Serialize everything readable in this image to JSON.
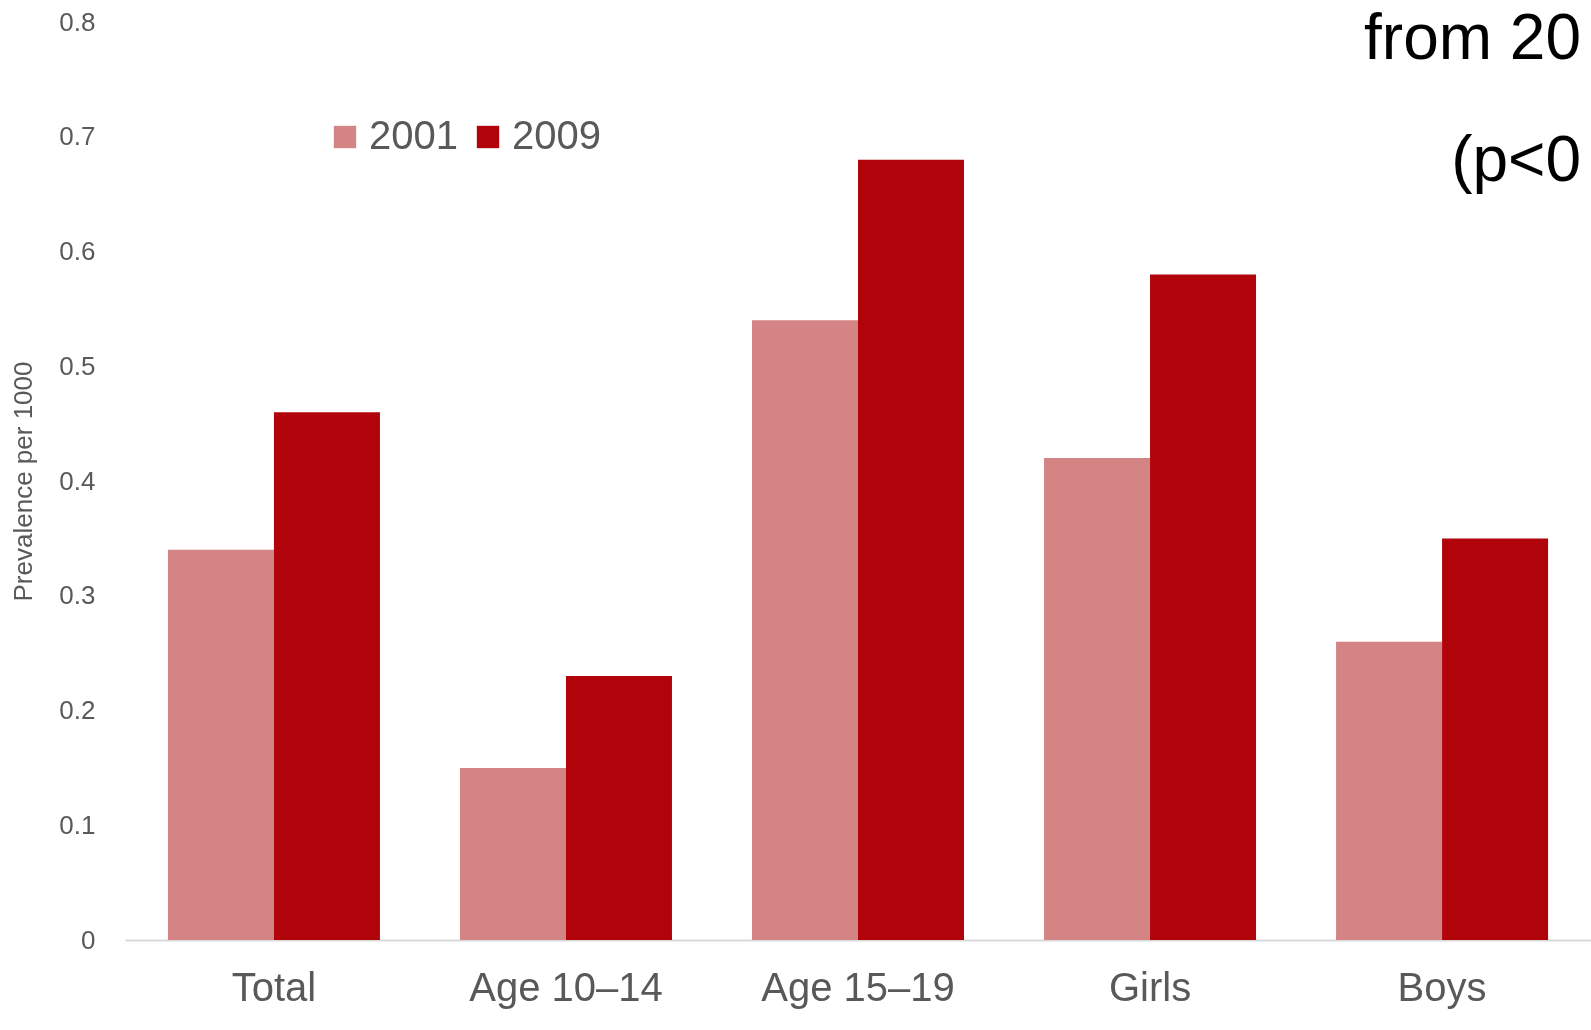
{
  "chart_data": {
    "type": "bar",
    "ylabel": "Prevalence per 1000",
    "categories": [
      "Total",
      "Age 10–14",
      "Age 15–19",
      "Girls",
      "Boys"
    ],
    "series": [
      {
        "name": "2001",
        "color": "#d48484",
        "values": [
          0.34,
          0.15,
          0.54,
          0.42,
          0.26
        ]
      },
      {
        "name": "2009",
        "color": "#b0040a",
        "values": [
          0.46,
          0.23,
          0.68,
          0.58,
          0.35
        ]
      }
    ],
    "ylim": [
      0,
      0.8
    ],
    "yticks": [
      0,
      0.1,
      0.2,
      0.3,
      0.4,
      0.5,
      0.6,
      0.7,
      0.8
    ],
    "grid": false,
    "legend": "top left",
    "annotations": [
      "from 20",
      "(p<0"
    ]
  }
}
